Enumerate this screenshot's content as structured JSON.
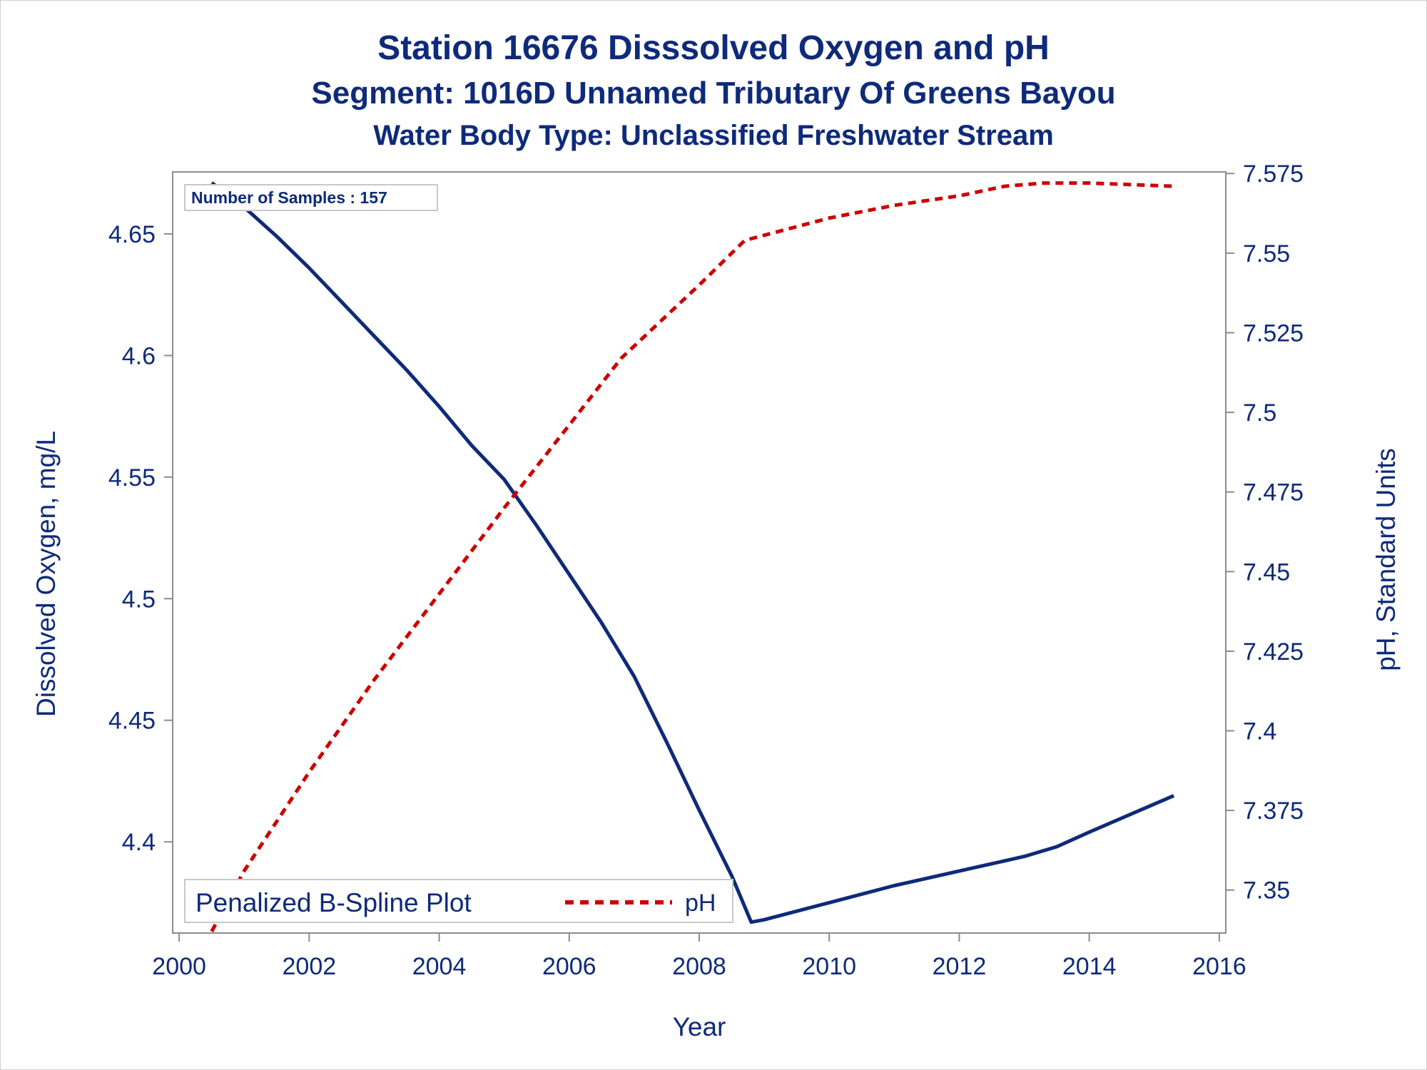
{
  "titles": {
    "line1": "Station 16676   Disssolved Oxygen and pH",
    "line2": "Segment: 1016D  Unnamed Tributary Of Greens Bayou",
    "line3": "Water Body Type: Unclassified Freshwater Stream"
  },
  "samples_label": "Number of Samples : 157",
  "legend": {
    "title": "Penalized B-Spline Plot",
    "ph_label": "pH"
  },
  "colors": {
    "do_line": "#0e2a7a",
    "ph_line": "#cc0000",
    "text": "#0e2a7a",
    "axis": "#8c8c8c"
  },
  "chart_data": {
    "type": "line",
    "xlabel": "Year",
    "ylabel_left": "Dissolved Oxygen, mg/L",
    "ylabel_right": "pH, Standard Units",
    "xlim": [
      1999.9,
      2016.1
    ],
    "ylim_left": [
      4.3625,
      4.6755
    ],
    "ylim_right": [
      7.3365,
      7.5755
    ],
    "x_ticks": [
      2000,
      2002,
      2004,
      2006,
      2008,
      2010,
      2012,
      2014,
      2016
    ],
    "y_left_ticks": [
      4.4,
      4.45,
      4.5,
      4.55,
      4.6,
      4.65
    ],
    "y_right_ticks": [
      7.35,
      7.375,
      7.4,
      7.425,
      7.45,
      7.475,
      7.5,
      7.525,
      7.55,
      7.575
    ],
    "series": [
      {
        "name": "Dissolved Oxygen",
        "axis": "left",
        "style": "solid",
        "x": [
          2000.5,
          2001.0,
          2001.5,
          2002.0,
          2002.5,
          2003.0,
          2003.5,
          2004.0,
          2004.5,
          2005.0,
          2005.5,
          2006.0,
          2006.5,
          2007.0,
          2007.5,
          2008.0,
          2008.5,
          2008.8,
          2009.0,
          2010.0,
          2011.0,
          2012.0,
          2013.0,
          2013.5,
          2014.0,
          2015.3
        ],
        "values": [
          4.671,
          4.661,
          4.649,
          4.636,
          4.622,
          4.608,
          4.594,
          4.579,
          4.563,
          4.549,
          4.53,
          4.51,
          4.49,
          4.468,
          4.441,
          4.413,
          4.386,
          4.367,
          4.368,
          4.375,
          4.382,
          4.388,
          4.394,
          4.398,
          4.404,
          4.419
        ]
      },
      {
        "name": "pH",
        "axis": "right",
        "style": "dashed",
        "x": [
          2000.5,
          2001.0,
          2002.0,
          2003.0,
          2004.0,
          2005.0,
          2006.0,
          2006.8,
          2008.0,
          2008.7,
          2010.0,
          2011.0,
          2012.0,
          2012.7,
          2013.3,
          2014.0,
          2015.3
        ],
        "values": [
          7.337,
          7.356,
          7.387,
          7.416,
          7.443,
          7.47,
          7.496,
          7.517,
          7.54,
          7.554,
          7.561,
          7.565,
          7.568,
          7.571,
          7.572,
          7.572,
          7.571
        ]
      }
    ]
  }
}
